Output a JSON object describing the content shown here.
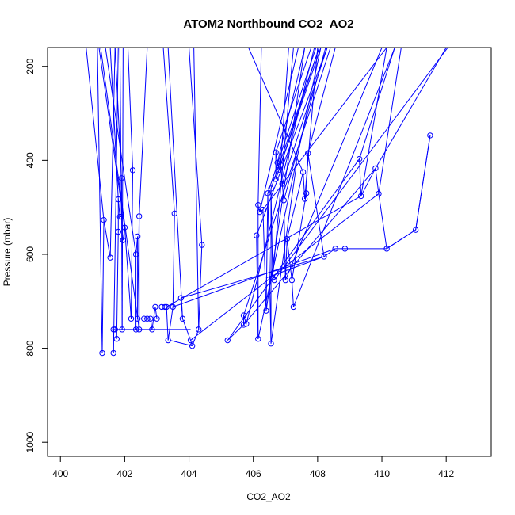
{
  "chart_data": {
    "type": "scatter",
    "title": "ATOM2 Northbound CO2_AO2",
    "xlabel": "CO2_AO2",
    "ylabel": "Pressure (mbar)",
    "xlim": [
      399.6,
      413.4
    ],
    "ylim": [
      1030,
      160
    ],
    "y_reversed": true,
    "x_ticks": [
      400,
      402,
      404,
      406,
      408,
      410,
      412
    ],
    "y_ticks": [
      200,
      400,
      600,
      800,
      1000
    ],
    "series_color": "#0000ff",
    "marker": "open-circle",
    "grid": false,
    "series": [
      {
        "points": [
          [
            401.3,
            810
          ],
          [
            401.35,
            527
          ],
          [
            401.55,
            607
          ]
        ]
      },
      {
        "points": [
          [
            401.65,
            810
          ],
          [
            401.65,
            760
          ],
          [
            401.7,
            760
          ]
        ]
      },
      {
        "points": [
          [
            401.75,
            780
          ],
          [
            401.8,
            552
          ],
          [
            401.8,
            483
          ],
          [
            401.85,
            520
          ],
          [
            401.9,
            520
          ],
          [
            401.9,
            438
          ],
          [
            401.92,
            760
          ]
        ]
      },
      {
        "points": [
          [
            401.95,
            570
          ],
          [
            402.0,
            543
          ],
          [
            402.2,
            737
          ],
          [
            402.25,
            421
          ]
        ]
      },
      {
        "points": [
          [
            402.35,
            760
          ],
          [
            402.35,
            600
          ],
          [
            402.4,
            562
          ],
          [
            402.4,
            737
          ],
          [
            402.45,
            519
          ],
          [
            402.45,
            760
          ]
        ]
      },
      {
        "points": [
          [
            402.6,
            737
          ],
          [
            402.7,
            737
          ],
          [
            402.8,
            737
          ],
          [
            402.85,
            760
          ],
          [
            402.95,
            712
          ],
          [
            403.0,
            737
          ]
        ]
      },
      {
        "points": [
          [
            403.15,
            712
          ],
          [
            403.25,
            712
          ],
          [
            403.3,
            712
          ],
          [
            403.35,
            783
          ],
          [
            403.5,
            712
          ],
          [
            403.55,
            513
          ]
        ]
      },
      {
        "points": [
          [
            403.75,
            693
          ],
          [
            403.8,
            737
          ],
          [
            404.05,
            783
          ],
          [
            404.1,
            795
          ],
          [
            404.3,
            760
          ],
          [
            404.4,
            580
          ]
        ]
      },
      {
        "points": [
          [
            405.2,
            783
          ],
          [
            405.7,
            750
          ],
          [
            405.7,
            730
          ],
          [
            405.78,
            748
          ]
        ]
      },
      {
        "points": [
          [
            406.1,
            560
          ],
          [
            406.15,
            780
          ],
          [
            406.15,
            495
          ],
          [
            406.2,
            510
          ],
          [
            406.3,
            505
          ],
          [
            406.4,
            720
          ],
          [
            406.45,
            470
          ],
          [
            406.55,
            790
          ],
          [
            406.55,
            460
          ],
          [
            406.6,
            650
          ],
          [
            406.65,
            655
          ]
        ]
      },
      {
        "points": [
          [
            406.7,
            440
          ],
          [
            406.7,
            383
          ],
          [
            406.75,
            405
          ],
          [
            406.8,
            420
          ],
          [
            406.85,
            410
          ],
          [
            406.9,
            450
          ],
          [
            406.95,
            485
          ],
          [
            407.0,
            655
          ],
          [
            407.05,
            567
          ],
          [
            407.2,
            655
          ],
          [
            407.25,
            712
          ]
        ]
      },
      {
        "points": [
          [
            407.55,
            425
          ],
          [
            407.6,
            482
          ],
          [
            407.65,
            470
          ],
          [
            407.7,
            385
          ],
          [
            408.2,
            605
          ],
          [
            408.55,
            588
          ],
          [
            408.85,
            588
          ]
        ]
      },
      {
        "points": [
          [
            409.3,
            397
          ],
          [
            409.35,
            476
          ],
          [
            409.8,
            417
          ],
          [
            409.9,
            471
          ],
          [
            410.15,
            588
          ],
          [
            411.05,
            548
          ],
          [
            411.5,
            347
          ]
        ]
      }
    ],
    "segments": [
      [
        401.15,
        160,
        401.3,
        810
      ],
      [
        401.35,
        527,
        400.8,
        160
      ],
      [
        401.55,
        607,
        401.7,
        160
      ],
      [
        401.65,
        810,
        401.8,
        160
      ],
      [
        401.7,
        760,
        404.05,
        760
      ],
      [
        401.92,
        760,
        401.95,
        160
      ],
      [
        401.8,
        483,
        401.55,
        160
      ],
      [
        401.9,
        438,
        401.7,
        160
      ],
      [
        402.25,
        421,
        402.1,
        160
      ],
      [
        402.45,
        519,
        402.7,
        160
      ],
      [
        402.45,
        760,
        401.25,
        160
      ],
      [
        402.35,
        600,
        401.4,
        160
      ],
      [
        401.9,
        520,
        401.85,
        160
      ],
      [
        402.0,
        543,
        401.2,
        160
      ],
      [
        403.55,
        513,
        403.2,
        160
      ],
      [
        404.4,
        580,
        404.0,
        160
      ],
      [
        404.3,
        760,
        404.15,
        160
      ],
      [
        403.8,
        737,
        403.35,
        160
      ],
      [
        404.1,
        795,
        403.4,
        783
      ],
      [
        403.75,
        693,
        408.2,
        605
      ],
      [
        403.3,
        712,
        409.35,
        476
      ],
      [
        403.5,
        712,
        408.55,
        588
      ],
      [
        404.05,
        783,
        409.9,
        471
      ],
      [
        405.2,
        783,
        409.3,
        397
      ],
      [
        405.7,
        750,
        409.8,
        417
      ],
      [
        405.7,
        730,
        408.4,
        160
      ],
      [
        405.78,
        748,
        407.9,
        160
      ],
      [
        406.15,
        780,
        408.1,
        160
      ],
      [
        406.1,
        560,
        408.3,
        160
      ],
      [
        406.2,
        510,
        407.4,
        160
      ],
      [
        406.3,
        505,
        410.15,
        160
      ],
      [
        406.4,
        720,
        407.6,
        160
      ],
      [
        406.45,
        470,
        407.95,
        160
      ],
      [
        406.55,
        790,
        407.35,
        405
      ],
      [
        406.55,
        460,
        408.05,
        160
      ],
      [
        406.6,
        650,
        407.25,
        160
      ],
      [
        406.65,
        655,
        412.05,
        160
      ],
      [
        406.7,
        440,
        408.1,
        160
      ],
      [
        406.7,
        383,
        407.8,
        160
      ],
      [
        406.75,
        405,
        407.6,
        160
      ],
      [
        406.8,
        420,
        408.05,
        160
      ],
      [
        406.85,
        410,
        407.1,
        160
      ],
      [
        406.9,
        450,
        408.3,
        160
      ],
      [
        406.95,
        485,
        408.25,
        160
      ],
      [
        407.0,
        655,
        410.0,
        160
      ],
      [
        407.05,
        567,
        407.55,
        425
      ],
      [
        407.2,
        655,
        407.65,
        470
      ],
      [
        407.25,
        712,
        410.4,
        160
      ],
      [
        407.55,
        425,
        405.85,
        160
      ],
      [
        407.6,
        482,
        408.0,
        160
      ],
      [
        407.7,
        385,
        408.55,
        160
      ],
      [
        408.85,
        588,
        410.15,
        588
      ],
      [
        410.15,
        588,
        411.05,
        548
      ],
      [
        411.05,
        548,
        411.5,
        347
      ],
      [
        409.35,
        476,
        410.15,
        160
      ],
      [
        409.3,
        397,
        410.4,
        160
      ],
      [
        409.8,
        417,
        412.0,
        160
      ],
      [
        409.9,
        471,
        410.6,
        160
      ],
      [
        408.2,
        605,
        406.4,
        650
      ],
      [
        406.25,
        160,
        406.15,
        495
      ]
    ]
  }
}
